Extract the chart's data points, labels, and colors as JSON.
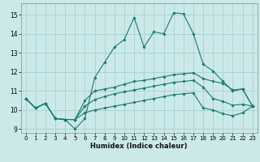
{
  "xlabel": "Humidex (Indice chaleur)",
  "xlim": [
    -0.5,
    23.5
  ],
  "ylim": [
    8.8,
    15.6
  ],
  "yticks": [
    9,
    10,
    11,
    12,
    13,
    14,
    15
  ],
  "xticks": [
    0,
    1,
    2,
    3,
    4,
    5,
    6,
    7,
    8,
    9,
    10,
    11,
    12,
    13,
    14,
    15,
    16,
    17,
    18,
    19,
    20,
    21,
    22,
    23
  ],
  "background_color": "#cce9e9",
  "grid_color": "#aad4d4",
  "line_color": "#1a7a6e",
  "series": [
    [
      10.6,
      10.1,
      10.35,
      9.55,
      9.5,
      9.0,
      9.55,
      11.7,
      12.5,
      13.3,
      13.7,
      14.85,
      13.3,
      14.1,
      14.0,
      15.1,
      15.05,
      14.0,
      12.4,
      12.05,
      11.5,
      11.0,
      11.1,
      10.2
    ],
    [
      10.6,
      10.1,
      10.35,
      9.55,
      9.5,
      9.5,
      10.5,
      11.0,
      11.1,
      11.2,
      11.35,
      11.5,
      11.55,
      11.65,
      11.75,
      11.85,
      11.9,
      11.95,
      11.65,
      11.5,
      11.4,
      11.05,
      11.1,
      10.2
    ],
    [
      10.6,
      10.1,
      10.35,
      9.55,
      9.5,
      9.5,
      10.2,
      10.55,
      10.7,
      10.85,
      10.95,
      11.05,
      11.15,
      11.25,
      11.35,
      11.45,
      11.5,
      11.55,
      11.2,
      10.6,
      10.45,
      10.25,
      10.3,
      10.2
    ],
    [
      10.6,
      10.1,
      10.35,
      9.55,
      9.5,
      9.5,
      9.85,
      10.0,
      10.1,
      10.2,
      10.3,
      10.4,
      10.5,
      10.6,
      10.7,
      10.8,
      10.85,
      10.9,
      10.1,
      10.0,
      9.8,
      9.7,
      9.85,
      10.2
    ]
  ]
}
